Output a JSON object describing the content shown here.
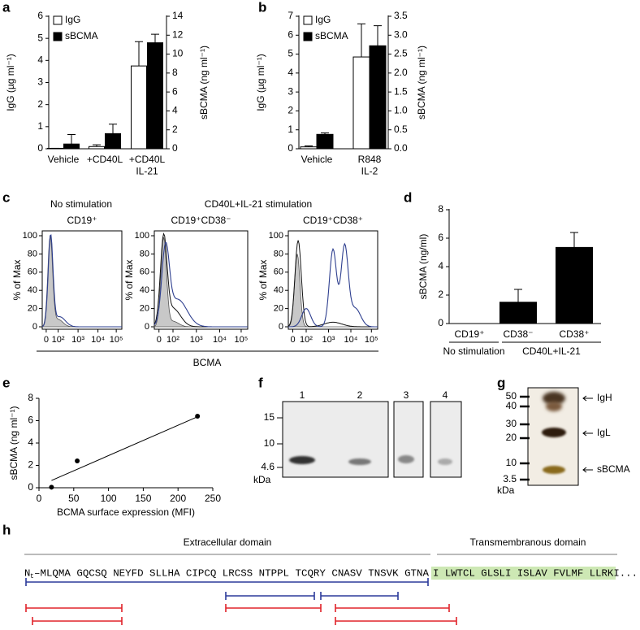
{
  "panel_labels": [
    "a",
    "b",
    "c",
    "d",
    "e",
    "f",
    "g",
    "h"
  ],
  "chart_data": [
    {
      "type": "bar",
      "y_label": "IgG (µg ml⁻¹)",
      "y2_label": "sBCMA (ng ml⁻¹)",
      "categories": [
        "Vehicle",
        "+CD40L",
        "+CD40L\nIL-21"
      ],
      "series": [
        {
          "name": "IgG",
          "color": "#ffffff",
          "values": [
            0.02,
            0.1,
            3.75
          ],
          "errors": [
            0,
            0.08,
            1.1
          ]
        },
        {
          "name": "sBCMA",
          "color": "#000000",
          "axis": "y2",
          "values": [
            0.5,
            1.6,
            11.2
          ],
          "errors": [
            1.0,
            1.0,
            0.9
          ]
        }
      ],
      "ylim": [
        0,
        6
      ],
      "yticks": [
        0,
        1,
        2,
        3,
        4,
        5,
        6
      ],
      "y2lim": [
        0,
        14
      ],
      "y2ticks": [
        0,
        2,
        4,
        6,
        8,
        10,
        12,
        14
      ],
      "legend": "upper left"
    },
    {
      "type": "bar",
      "y_label": "IgG (µg ml⁻¹)",
      "y2_label": "sBCMA (ng ml⁻¹)",
      "categories": [
        "Vehicle",
        "R848\nIL-2"
      ],
      "series": [
        {
          "name": "IgG",
          "color": "#ffffff",
          "values": [
            0.1,
            4.85
          ],
          "errors": [
            0.05,
            1.75
          ]
        },
        {
          "name": "sBCMA",
          "color": "#000000",
          "axis": "y2",
          "values": [
            0.38,
            2.72
          ],
          "errors": [
            0.04,
            0.53
          ]
        }
      ],
      "ylim": [
        0,
        7
      ],
      "yticks": [
        0,
        1,
        2,
        3,
        4,
        5,
        6,
        7
      ],
      "y2lim": [
        0,
        3.5
      ],
      "y2ticks": [
        {
          "value": 0,
          "label": "0.0"
        },
        0.5,
        {
          "value": 1,
          "label": "1.0"
        },
        1.5,
        {
          "value": 2,
          "label": "2.0"
        },
        2.5,
        {
          "value": 3,
          "label": "3.0"
        },
        3.5
      ],
      "legend": "upper left"
    },
    {
      "type": "bar",
      "y_label": "sBCMA (ng/ml)",
      "categories": [
        "CD19⁺",
        "CD38⁻",
        "CD38⁺"
      ],
      "group_labels": [
        "No stimulation",
        "CD40L+IL-21"
      ],
      "values": [
        0,
        1.5,
        5.35
      ],
      "errors": [
        0,
        0.9,
        1.05
      ],
      "color": "#000000",
      "ylim": [
        0,
        8
      ],
      "yticks": [
        0,
        2,
        4,
        6,
        8
      ]
    },
    {
      "type": "scatter",
      "x_label": "BCMA surface expression (MFI)",
      "y_label": "sBCMA (ng ml⁻¹)",
      "x": [
        18,
        55,
        228
      ],
      "y": [
        0.05,
        2.4,
        6.4
      ],
      "color": "#000000",
      "trendline": {
        "x": [
          18,
          228
        ],
        "y": [
          0.65,
          6.35
        ]
      },
      "xlim": [
        0,
        250
      ],
      "xticks": [
        0,
        50,
        100,
        150,
        200,
        250
      ],
      "ylim": [
        0,
        8
      ],
      "yticks": [
        0,
        2,
        4,
        6,
        8
      ]
    }
  ],
  "flow_cytometry": {
    "group_titles": [
      "No stimulation",
      "CD40L+IL-21 stimulation"
    ],
    "plot_titles": [
      "CD19⁺",
      "CD19⁺CD38⁻",
      "CD19⁺CD38⁺"
    ],
    "y_label": "% of Max",
    "y_ticks": [
      0,
      20,
      40,
      60,
      80,
      100
    ],
    "x_ticks": [
      "0",
      "10²",
      "10³",
      "10⁴",
      "10⁵"
    ],
    "x_label": "BCMA"
  },
  "blot": {
    "lane_labels": [
      "1",
      "2",
      "3",
      "4"
    ],
    "markers": [
      "15",
      "10",
      "4.6"
    ],
    "unit": "kDa"
  },
  "gel": {
    "markers": [
      "50",
      "40",
      "30",
      "20",
      "10",
      "3.5"
    ],
    "unit": "kDa",
    "annotations": [
      "IgH",
      "IgL",
      "sBCMA"
    ]
  },
  "sequence": {
    "domains": [
      "Extracellular domain",
      "Transmembranous domain"
    ],
    "start": "N",
    "start_sub": "t",
    "extracellular": "–MLQMA GQCSQ NEYFD SLLHA CIPCQ LRCSS NTPPL TCQRY CNASV TNSVK GTNA",
    "transmembrane": "I LWTCL GLSLI ISLAV FVLMF LLRKI..."
  }
}
